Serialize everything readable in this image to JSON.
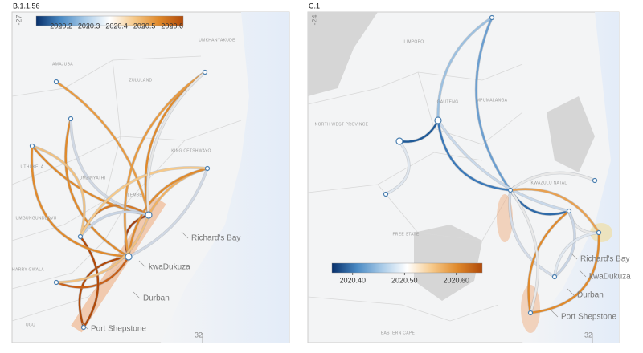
{
  "panels": [
    {
      "label": "B.1.1.56",
      "lat_label": -27,
      "lon_label": 32,
      "colorbar": {
        "range": [
          2020.11,
          2020.64
        ],
        "ticks": [
          2020.2,
          2020.3,
          2020.4,
          2020.5,
          2020.6
        ],
        "colors": [
          "#08306b",
          "#4a8ac4",
          "#a9cbe8",
          "#ffffff",
          "#f6c98a",
          "#e08a2c",
          "#b04a0a"
        ]
      },
      "regions": [
        "UMKHANYAKUDE",
        "AMAJUBA",
        "ZULULAND",
        "UTHUKELA",
        "UMZINYATHI",
        "KING CETSHWAYO",
        "ILEMBE",
        "UMGUNGUNDLOVU",
        "HARRY GWALA",
        "UGU"
      ],
      "places": [
        "Richard's Bay",
        "kwaDukuza",
        "Durban",
        "Port Shepstone"
      ]
    },
    {
      "label": "C.1",
      "lat_label": -24,
      "lon_label": 32,
      "colorbar": {
        "range": [
          2020.36,
          2020.65
        ],
        "ticks": [
          {
            "value": 2020.4,
            "label": "2020.40"
          },
          {
            "value": 2020.5,
            "label": "2020.50"
          },
          {
            "value": 2020.6,
            "label": "2020.60"
          }
        ],
        "colors": [
          "#08306b",
          "#4a8ac4",
          "#a9cbe8",
          "#ffffff",
          "#f6c98a",
          "#e08a2c",
          "#b04a0a"
        ]
      },
      "regions": [
        "LIMPOPO",
        "MPUMALANGA",
        "GAUTENG",
        "NORTH WEST PROVINCE",
        "KWAZULU NATAL",
        "FREE STATE",
        "EASTERN CAPE"
      ],
      "places": [
        "Richard's Bay",
        "kwaDukuza",
        "Durban",
        "Port Shepstone"
      ]
    }
  ]
}
